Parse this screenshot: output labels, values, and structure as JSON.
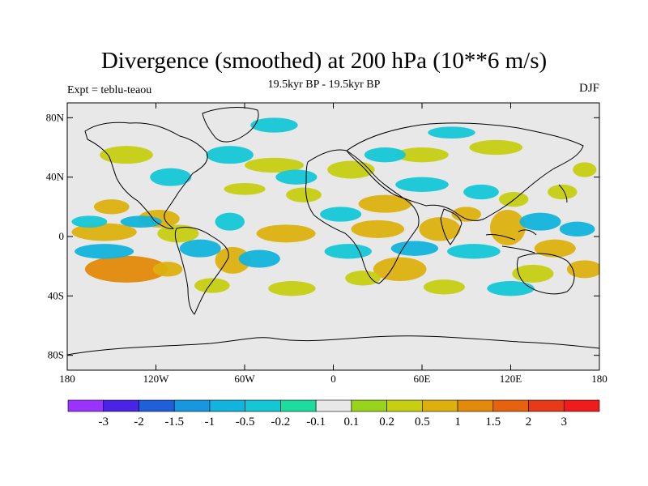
{
  "chart_data": {
    "type": "heatmap",
    "title": "Divergence (smoothed) at 200 hPa (10**6 m/s)",
    "subtitle": "19.5kyr BP - 19.5kyr BP",
    "left_label": "Expt = teblu-teaou",
    "right_label": "DJF",
    "xlabel": "",
    "ylabel": "",
    "xlim": [
      -180,
      180
    ],
    "ylim": [
      -90,
      90
    ],
    "x_ticks": [
      {
        "value": -180,
        "label": "180"
      },
      {
        "value": -120,
        "label": "120W"
      },
      {
        "value": -60,
        "label": "60W"
      },
      {
        "value": 0,
        "label": "0"
      },
      {
        "value": 60,
        "label": "60E"
      },
      {
        "value": 120,
        "label": "120E"
      },
      {
        "value": 180,
        "label": "180"
      }
    ],
    "y_ticks": [
      {
        "value": 80,
        "label": "80N"
      },
      {
        "value": 40,
        "label": "40N"
      },
      {
        "value": 0,
        "label": "0"
      },
      {
        "value": -40,
        "label": "40S"
      },
      {
        "value": -80,
        "label": "80S"
      }
    ],
    "colorbar": {
      "levels": [
        -3,
        -2,
        -1.5,
        -1,
        -0.5,
        -0.2,
        -0.1,
        0.1,
        0.2,
        0.5,
        1,
        1.5,
        2,
        3
      ],
      "labels": [
        "-3",
        "-2",
        "-1.5",
        "-1",
        "-0.5",
        "-0.2",
        "-0.1",
        "0.1",
        "0.2",
        "0.5",
        "1",
        "1.5",
        "2",
        "3"
      ],
      "colors": [
        "#9a33ff",
        "#4a24e6",
        "#1f5fd8",
        "#1797e0",
        "#12b3dc",
        "#15c7d6",
        "#1edc9e",
        "#e8e8e8",
        "#99d41c",
        "#c6cf12",
        "#dcb10e",
        "#e38a0b",
        "#e6620f",
        "#e63a18",
        "#f01c1c"
      ]
    },
    "regions": [
      {
        "lon": -150,
        "lat": 20,
        "rx": 12,
        "ry": 5,
        "value": 0.6
      },
      {
        "lon": -118,
        "lat": 12,
        "rx": 14,
        "ry": 6,
        "value": 0.5
      },
      {
        "lon": -155,
        "lat": 3,
        "rx": 22,
        "ry": 6,
        "value": 0.8
      },
      {
        "lon": -105,
        "lat": 2,
        "rx": 14,
        "ry": 6,
        "value": 0.4
      },
      {
        "lon": -140,
        "lat": -22,
        "rx": 28,
        "ry": 9,
        "value": 1.2
      },
      {
        "lon": -112,
        "lat": -22,
        "rx": 10,
        "ry": 5,
        "value": 0.5
      },
      {
        "lon": -68,
        "lat": -16,
        "rx": 12,
        "ry": 9,
        "value": 0.7
      },
      {
        "lon": -82,
        "lat": -33,
        "rx": 12,
        "ry": 5,
        "value": 0.4
      },
      {
        "lon": -32,
        "lat": 2,
        "rx": 20,
        "ry": 6,
        "value": 0.6
      },
      {
        "lon": -20,
        "lat": 28,
        "rx": 12,
        "ry": 5,
        "value": 0.3
      },
      {
        "lon": -40,
        "lat": 48,
        "rx": 20,
        "ry": 5,
        "value": 0.3
      },
      {
        "lon": -60,
        "lat": 32,
        "rx": 14,
        "ry": 4,
        "value": 0.3
      },
      {
        "lon": -28,
        "lat": -35,
        "rx": 16,
        "ry": 5,
        "value": 0.3
      },
      {
        "lon": 12,
        "lat": 45,
        "rx": 16,
        "ry": 6,
        "value": 0.4
      },
      {
        "lon": 35,
        "lat": 22,
        "rx": 18,
        "ry": 6,
        "value": 0.5
      },
      {
        "lon": 30,
        "lat": 5,
        "rx": 18,
        "ry": 6,
        "value": 0.6
      },
      {
        "lon": 72,
        "lat": 5,
        "rx": 14,
        "ry": 8,
        "value": 0.9
      },
      {
        "lon": 90,
        "lat": 15,
        "rx": 10,
        "ry": 5,
        "value": 0.6
      },
      {
        "lon": 45,
        "lat": -22,
        "rx": 18,
        "ry": 8,
        "value": 0.8
      },
      {
        "lon": 20,
        "lat": -28,
        "rx": 12,
        "ry": 5,
        "value": 0.4
      },
      {
        "lon": 75,
        "lat": -34,
        "rx": 14,
        "ry": 5,
        "value": 0.4
      },
      {
        "lon": 118,
        "lat": 6,
        "rx": 12,
        "ry": 12,
        "value": 0.9
      },
      {
        "lon": 150,
        "lat": -8,
        "rx": 14,
        "ry": 6,
        "value": 0.7
      },
      {
        "lon": 122,
        "lat": 25,
        "rx": 10,
        "ry": 5,
        "value": 0.4
      },
      {
        "lon": 155,
        "lat": 30,
        "rx": 10,
        "ry": 5,
        "value": 0.3
      },
      {
        "lon": 170,
        "lat": 45,
        "rx": 8,
        "ry": 5,
        "value": 0.3
      },
      {
        "lon": 135,
        "lat": -25,
        "rx": 14,
        "ry": 6,
        "value": 0.4
      },
      {
        "lon": 170,
        "lat": -22,
        "rx": 12,
        "ry": 6,
        "value": 0.5
      },
      {
        "lon": -140,
        "lat": 55,
        "rx": 18,
        "ry": 6,
        "value": 0.3
      },
      {
        "lon": 60,
        "lat": 55,
        "rx": 18,
        "ry": 5,
        "value": 0.3
      },
      {
        "lon": 110,
        "lat": 60,
        "rx": 18,
        "ry": 5,
        "value": 0.3
      },
      {
        "lon": -165,
        "lat": 10,
        "rx": 12,
        "ry": 4,
        "value": -0.5
      },
      {
        "lon": -130,
        "lat": 10,
        "rx": 14,
        "ry": 4,
        "value": -0.7
      },
      {
        "lon": -155,
        "lat": -10,
        "rx": 20,
        "ry": 5,
        "value": -0.6
      },
      {
        "lon": -90,
        "lat": -8,
        "rx": 14,
        "ry": 6,
        "value": -0.9
      },
      {
        "lon": -70,
        "lat": 10,
        "rx": 10,
        "ry": 6,
        "value": -0.5
      },
      {
        "lon": -50,
        "lat": -15,
        "rx": 14,
        "ry": 6,
        "value": -0.6
      },
      {
        "lon": -110,
        "lat": 40,
        "rx": 14,
        "ry": 6,
        "value": -0.4
      },
      {
        "lon": -70,
        "lat": 55,
        "rx": 16,
        "ry": 6,
        "value": -0.3
      },
      {
        "lon": -40,
        "lat": 75,
        "rx": 16,
        "ry": 5,
        "value": -0.3
      },
      {
        "lon": -25,
        "lat": 40,
        "rx": 14,
        "ry": 5,
        "value": -0.4
      },
      {
        "lon": 5,
        "lat": 15,
        "rx": 14,
        "ry": 5,
        "value": -0.4
      },
      {
        "lon": 10,
        "lat": -10,
        "rx": 16,
        "ry": 5,
        "value": -0.5
      },
      {
        "lon": 55,
        "lat": -8,
        "rx": 16,
        "ry": 5,
        "value": -0.7
      },
      {
        "lon": 95,
        "lat": -10,
        "rx": 18,
        "ry": 5,
        "value": -0.5
      },
      {
        "lon": 60,
        "lat": 35,
        "rx": 18,
        "ry": 5,
        "value": -0.4
      },
      {
        "lon": 140,
        "lat": 10,
        "rx": 14,
        "ry": 6,
        "value": -0.9
      },
      {
        "lon": 165,
        "lat": 5,
        "rx": 12,
        "ry": 5,
        "value": -0.6
      },
      {
        "lon": 100,
        "lat": 30,
        "rx": 12,
        "ry": 5,
        "value": -0.3
      },
      {
        "lon": 35,
        "lat": 55,
        "rx": 14,
        "ry": 5,
        "value": -0.3
      },
      {
        "lon": 120,
        "lat": -35,
        "rx": 16,
        "ry": 5,
        "value": -0.3
      },
      {
        "lon": 80,
        "lat": 70,
        "rx": 16,
        "ry": 4,
        "value": -0.3
      }
    ]
  }
}
